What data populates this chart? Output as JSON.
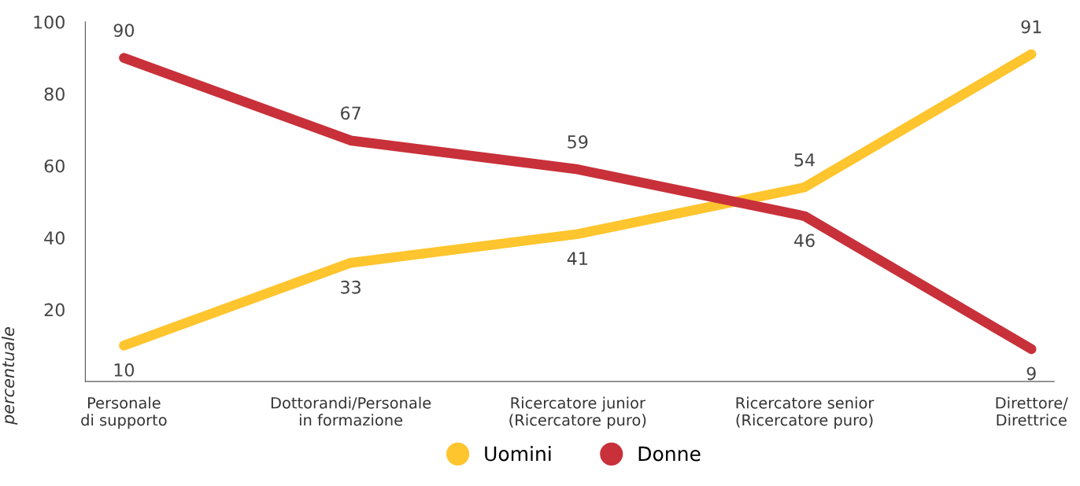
{
  "chart_data": {
    "type": "line",
    "ylabel": "percentuale",
    "categories": [
      "Personale\ndi supporto",
      "Dottorandi/Personale\nin formazione",
      "Ricercatore junior\n(Ricercatore puro)",
      "Ricercatore senior\n(Ricercatore puro)",
      "Direttore/\nDirettrice"
    ],
    "series": [
      {
        "name": "Uomini",
        "color": "#fec52e",
        "values": [
          10,
          33,
          41,
          54,
          91
        ]
      },
      {
        "name": "Donne",
        "color": "#c8313a",
        "values": [
          90,
          67,
          59,
          46,
          9
        ]
      }
    ],
    "ylim": [
      0,
      100
    ],
    "yticks": [
      20,
      40,
      60,
      80,
      100
    ],
    "data_labels": true,
    "grid": false,
    "legend": "bottom",
    "line_style": "solid"
  }
}
